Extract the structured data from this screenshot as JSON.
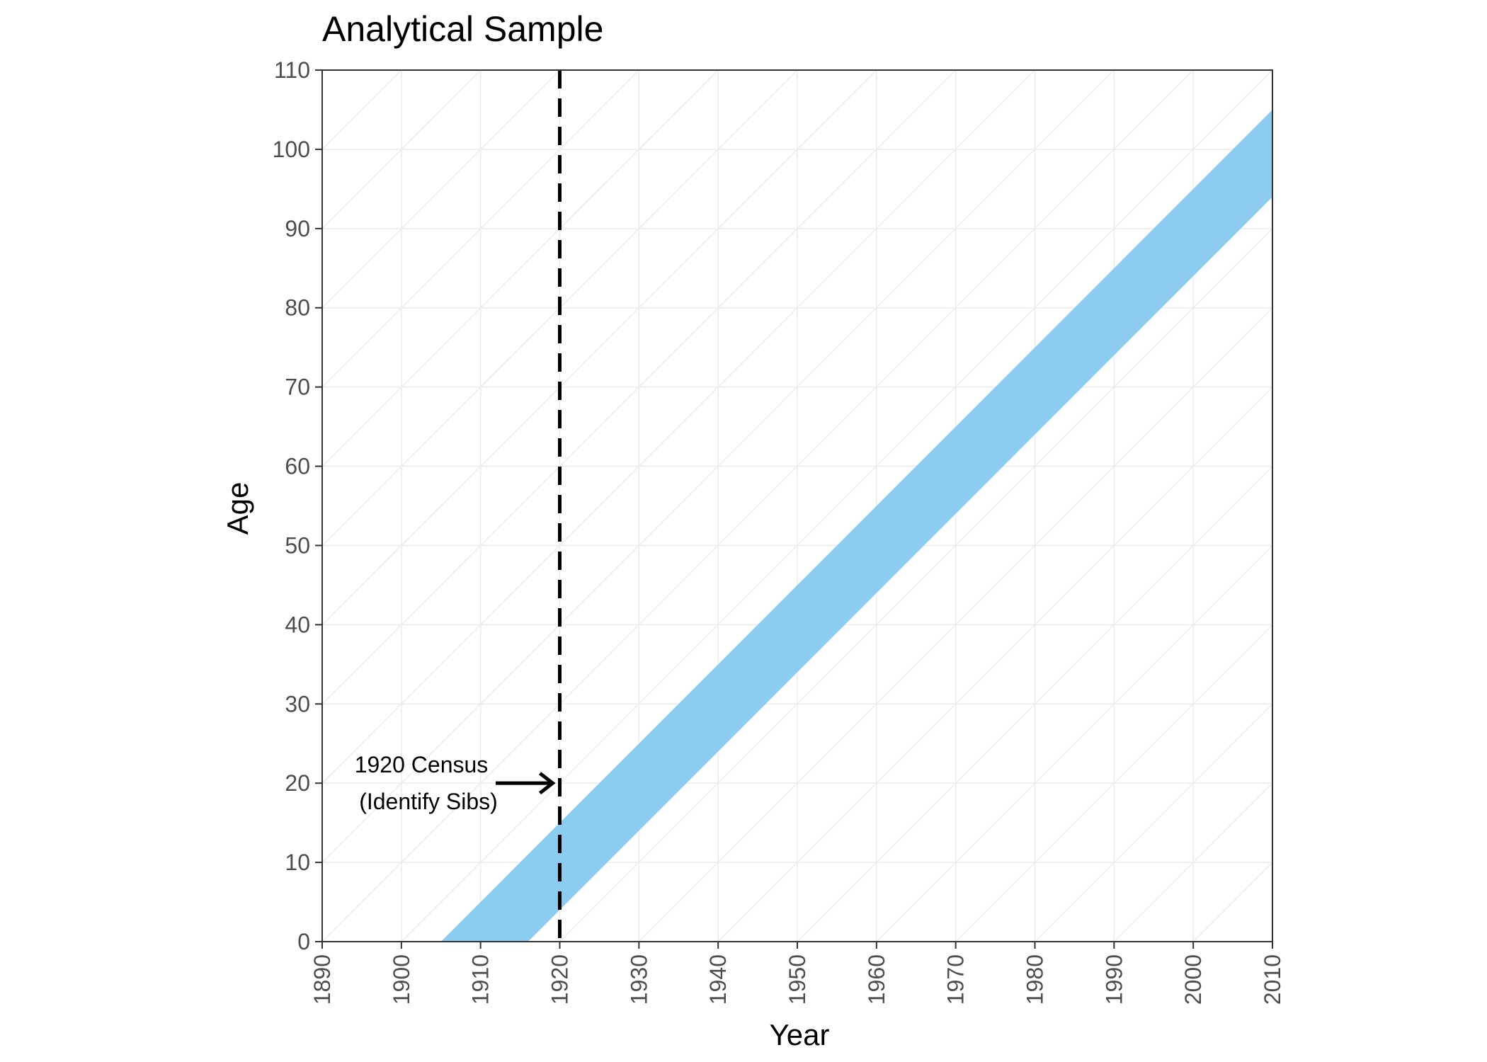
{
  "chart_data": {
    "type": "area",
    "title": "Analytical Sample",
    "xlabel": "Year",
    "ylabel": "Age",
    "xlim": [
      1890,
      2010
    ],
    "ylim": [
      0,
      110
    ],
    "x_ticks": [
      1890,
      1900,
      1910,
      1920,
      1930,
      1940,
      1950,
      1960,
      1970,
      1980,
      1990,
      2000,
      2010
    ],
    "y_ticks": [
      0,
      10,
      20,
      30,
      40,
      50,
      60,
      70,
      80,
      90,
      100,
      110
    ],
    "grid": true,
    "band": {
      "birth_year_start": 1905,
      "birth_year_end": 1916,
      "color": "#85C9EF"
    },
    "vline": {
      "x": 1920,
      "style": "dashed",
      "color": "#000000"
    },
    "annotation": {
      "lines": [
        "1920 Census",
        "(Identify Sibs)"
      ],
      "arrow_to": [
        1920,
        20
      ]
    }
  }
}
